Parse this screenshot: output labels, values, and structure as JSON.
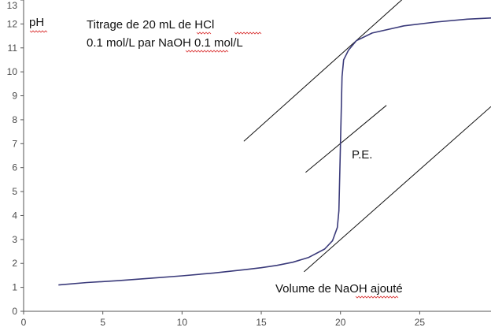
{
  "chart_data": {
    "type": "line",
    "ylabel": "pH",
    "title_lines": [
      "Titrage de 20 mL de HCl",
      "0.1 mol/L par NaOH 0.1 mol/L"
    ],
    "xlabel": "Volume de NaOH ajouté",
    "equivalence_label": "P.E.",
    "xlim": [
      0,
      29.5
    ],
    "ylim": [
      0,
      13
    ],
    "x_ticks": [
      0,
      5,
      10,
      15,
      20,
      25
    ],
    "y_ticks": [
      0,
      1,
      2,
      3,
      4,
      5,
      6,
      7,
      8,
      9,
      10,
      11,
      12,
      13
    ],
    "grid": false,
    "series": [
      {
        "color": "#3a3a7a",
        "x": [
          2.2,
          4,
          6,
          8,
          10,
          12,
          14,
          15,
          16,
          17,
          18,
          19,
          19.5,
          19.8,
          19.9,
          20.0,
          20.1,
          20.2,
          20.5,
          21,
          22,
          24,
          26,
          28,
          29.5
        ],
        "y": [
          1.1,
          1.2,
          1.28,
          1.38,
          1.48,
          1.6,
          1.74,
          1.82,
          1.92,
          2.05,
          2.25,
          2.6,
          2.95,
          3.5,
          4.2,
          7.0,
          9.8,
          10.5,
          10.9,
          11.3,
          11.62,
          11.92,
          12.08,
          12.2,
          12.25
        ]
      }
    ],
    "tangent_lines": [
      {
        "color": "#111111",
        "x": [
          13.9,
          24.2
        ],
        "y": [
          7.1,
          13.2
        ]
      },
      {
        "color": "#111111",
        "x": [
          17.8,
          22.9
        ],
        "y": [
          5.8,
          8.6
        ]
      },
      {
        "color": "#111111",
        "x": [
          17.7,
          29.5
        ],
        "y": [
          1.65,
          8.55
        ]
      }
    ]
  }
}
